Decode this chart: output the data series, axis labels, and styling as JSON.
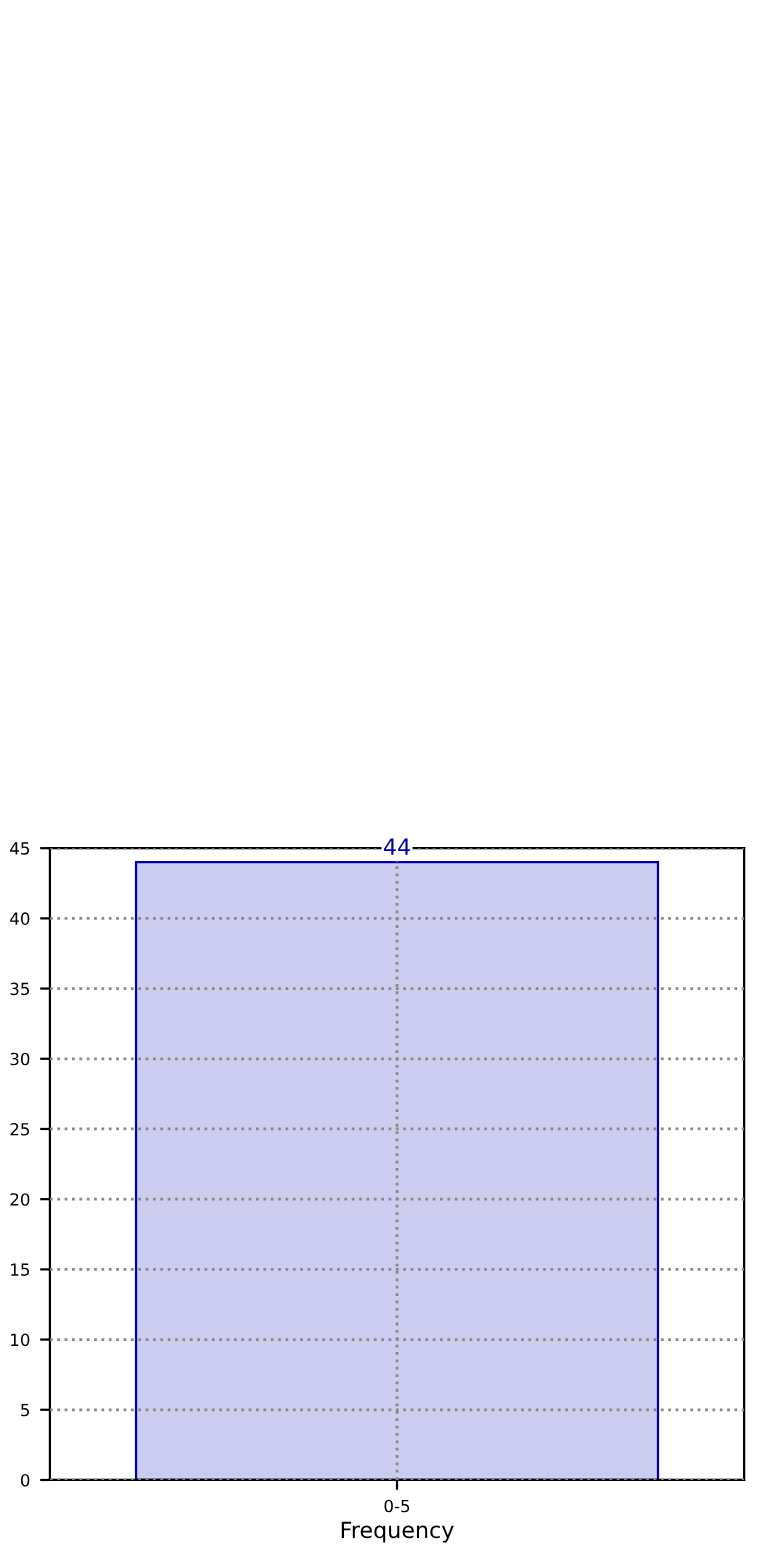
{
  "chart_data": {
    "type": "bar",
    "xlabel": "Frequency",
    "categories": [
      "0-5"
    ],
    "values": [
      44
    ],
    "color": "#ccccee",
    "ylim": [
      0,
      45
    ],
    "yticks": [
      0,
      5,
      10,
      15,
      20,
      25,
      30,
      35,
      40,
      45
    ],
    "grid": true,
    "data_labels": true
  }
}
